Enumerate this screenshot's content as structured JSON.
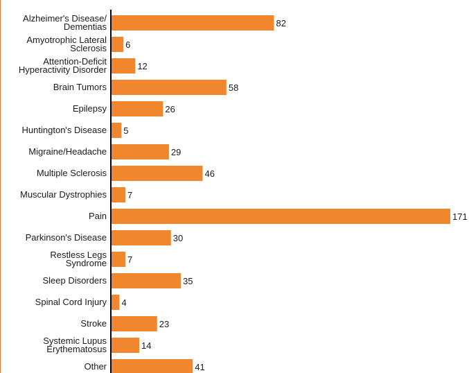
{
  "chart_data": {
    "type": "bar",
    "orientation": "horizontal",
    "title": "",
    "xlabel": "",
    "ylabel": "",
    "grid": false,
    "legend": "none",
    "xlim": [
      0,
      171
    ],
    "bar_color": "#f0862e",
    "page_edge_color": "#e8732a",
    "categories": [
      [
        "Alzheimer's Disease/",
        "Dementias"
      ],
      [
        "Amyotrophic Lateral",
        "Sclerosis"
      ],
      [
        "Attention-Deficit",
        "Hyperactivity Disorder"
      ],
      [
        "Brain Tumors"
      ],
      [
        "Epilepsy"
      ],
      [
        "Huntington's Disease"
      ],
      [
        "Migraine/Headache"
      ],
      [
        "Multiple Sclerosis"
      ],
      [
        "Muscular Dystrophies"
      ],
      [
        "Pain"
      ],
      [
        "Parkinson's Disease"
      ],
      [
        "Restless Legs",
        "Syndrome"
      ],
      [
        "Sleep Disorders"
      ],
      [
        "Spinal Cord Injury"
      ],
      [
        "Stroke"
      ],
      [
        "Systemic Lupus",
        "Erythematosus"
      ],
      [
        "Other"
      ]
    ],
    "values": [
      82,
      6,
      12,
      58,
      26,
      5,
      29,
      46,
      7,
      171,
      30,
      7,
      35,
      4,
      23,
      14,
      41
    ]
  }
}
